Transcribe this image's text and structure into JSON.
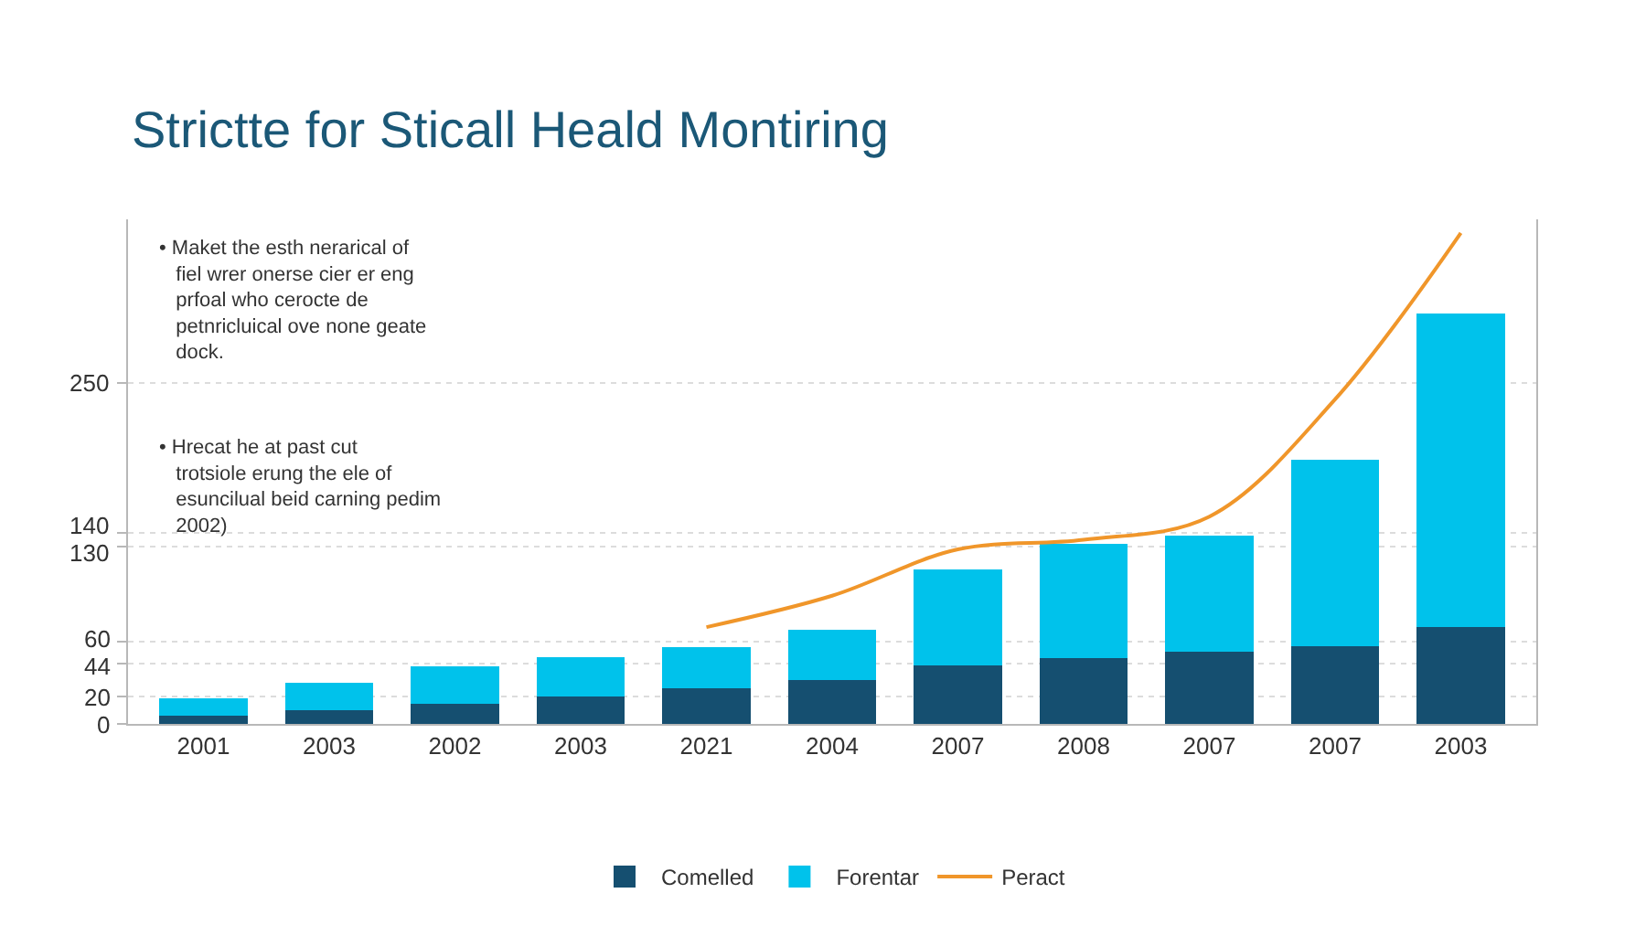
{
  "chart_data": {
    "type": "bar",
    "title": "Strictte for Sticall Heald Montiring",
    "categories": [
      "2001",
      "2003",
      "2002",
      "2003",
      "2021",
      "2004",
      "2007",
      "2008",
      "2007",
      "2007",
      "2003"
    ],
    "stacked": true,
    "series": [
      {
        "name": "Comelled",
        "color": "#154f70",
        "values": [
          6,
          10,
          15,
          20,
          26,
          32,
          43,
          48,
          53,
          57,
          71
        ]
      },
      {
        "name": "Forentar",
        "color": "#00c2eb",
        "values": [
          13,
          20,
          27,
          29,
          30,
          37,
          70,
          84,
          85,
          137,
          230
        ]
      },
      {
        "name": "Peract",
        "type": "line",
        "color": "#f0962a",
        "values": [
          null,
          null,
          null,
          null,
          71,
          94,
          128,
          135,
          152,
          238,
          360
        ]
      }
    ],
    "ylim": [
      0,
      370
    ],
    "yticks": [
      0,
      20,
      44,
      60,
      130,
      140,
      250
    ],
    "grid": "y",
    "legend": "bottom",
    "marker": "none",
    "annotations": [
      "• Maket the esth nerarical of fiel wrer onerse cier er eng prfoal who cerocte de petnricluical ove none geate dock.",
      "• Hrecat he at past cut trotsiole erung the ele of esuncilual beid carning pedim 2002)"
    ]
  }
}
